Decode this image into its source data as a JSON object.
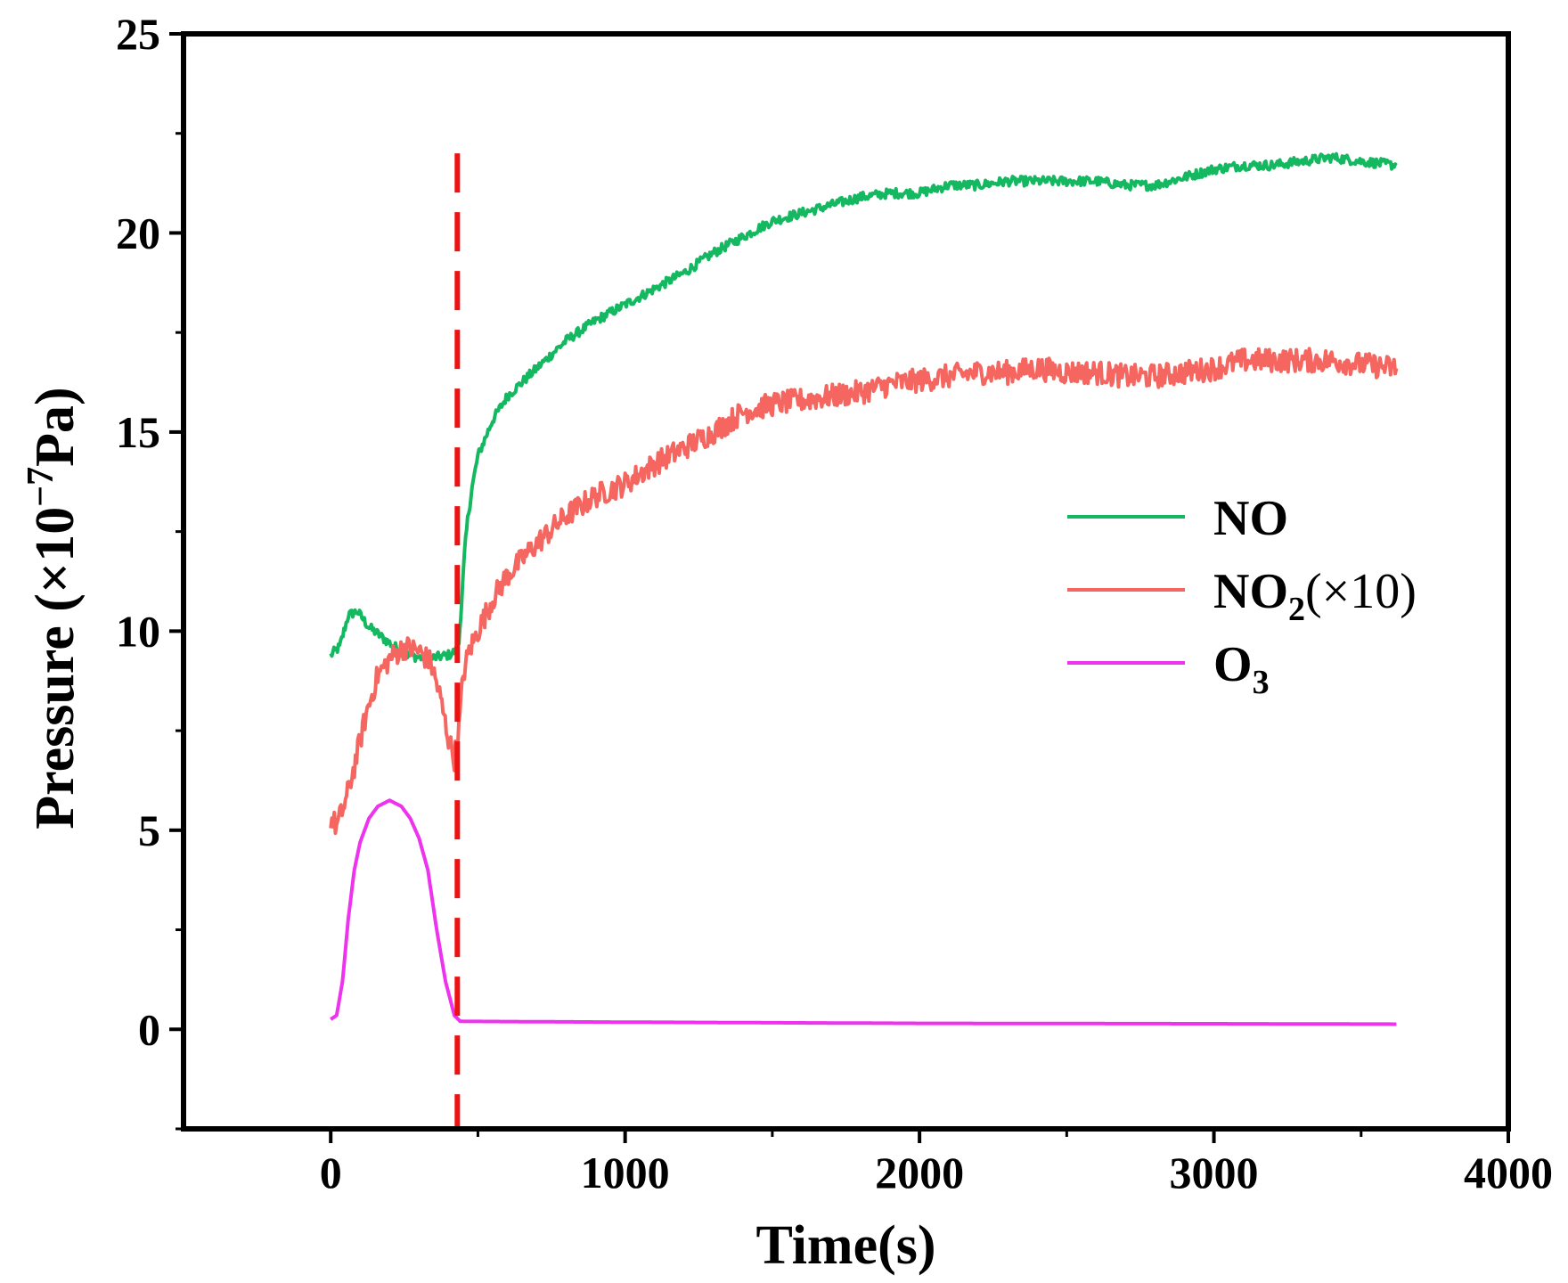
{
  "chart_data": {
    "type": "line",
    "title": "",
    "xlabel": "Time(s)",
    "ylabel": {
      "prefix": "Pressure (×10",
      "exponent": "−7",
      "suffix": "Pa)"
    },
    "xlim": [
      -500,
      4000
    ],
    "ylim": [
      -2.5,
      25
    ],
    "xticks": [
      0,
      1000,
      2000,
      3000,
      4000
    ],
    "yticks": [
      0,
      5,
      10,
      15,
      20,
      25
    ],
    "xtick_labels": [
      "0",
      "1000",
      "2000",
      "3000",
      "4000"
    ],
    "ytick_labels": [
      "0",
      "5",
      "10",
      "15",
      "20",
      "25"
    ],
    "vline": {
      "x": 430,
      "y_range": [
        -2.5,
        22
      ],
      "color": "#ee1111",
      "style": "dashed"
    },
    "legend_position": "right",
    "series": [
      {
        "name": "NO",
        "legend": {
          "main": "NO",
          "sub": "",
          "suffix": ""
        },
        "color": "#14b860",
        "noise": 0.12,
        "points": [
          [
            0,
            9.4
          ],
          [
            30,
            9.6
          ],
          [
            60,
            10.4
          ],
          [
            90,
            10.5
          ],
          [
            130,
            10.1
          ],
          [
            200,
            9.7
          ],
          [
            260,
            9.4
          ],
          [
            330,
            9.3
          ],
          [
            400,
            9.4
          ],
          [
            425,
            9.5
          ],
          [
            435,
            9.7
          ],
          [
            445,
            10.8
          ],
          [
            455,
            12.0
          ],
          [
            465,
            12.8
          ],
          [
            480,
            13.6
          ],
          [
            500,
            14.4
          ],
          [
            550,
            15.3
          ],
          [
            600,
            15.9
          ],
          [
            700,
            16.6
          ],
          [
            800,
            17.3
          ],
          [
            900,
            17.8
          ],
          [
            1000,
            18.2
          ],
          [
            1100,
            18.6
          ],
          [
            1200,
            19.0
          ],
          [
            1300,
            19.5
          ],
          [
            1400,
            19.9
          ],
          [
            1500,
            20.3
          ],
          [
            1600,
            20.5
          ],
          [
            1700,
            20.7
          ],
          [
            1800,
            20.9
          ],
          [
            1900,
            21.0
          ],
          [
            2000,
            21.0
          ],
          [
            2100,
            21.2
          ],
          [
            2200,
            21.2
          ],
          [
            2300,
            21.3
          ],
          [
            2400,
            21.3
          ],
          [
            2500,
            21.3
          ],
          [
            2600,
            21.3
          ],
          [
            2700,
            21.2
          ],
          [
            2800,
            21.2
          ],
          [
            2900,
            21.4
          ],
          [
            3000,
            21.6
          ],
          [
            3100,
            21.7
          ],
          [
            3200,
            21.7
          ],
          [
            3300,
            21.8
          ],
          [
            3400,
            21.9
          ],
          [
            3500,
            21.8
          ],
          [
            3620,
            21.7
          ]
        ]
      },
      {
        "name": "NO2(×10)",
        "legend": {
          "main": "NO",
          "sub": "2",
          "suffix": "(×10)"
        },
        "color": "#f4665f",
        "noise": 0.3,
        "points": [
          [
            0,
            5.3
          ],
          [
            20,
            5.1
          ],
          [
            50,
            5.7
          ],
          [
            80,
            6.6
          ],
          [
            120,
            7.9
          ],
          [
            160,
            8.9
          ],
          [
            200,
            9.3
          ],
          [
            250,
            9.6
          ],
          [
            300,
            9.5
          ],
          [
            340,
            9.2
          ],
          [
            370,
            8.4
          ],
          [
            400,
            7.3
          ],
          [
            420,
            6.8
          ],
          [
            435,
            7.5
          ],
          [
            450,
            8.9
          ],
          [
            470,
            9.5
          ],
          [
            500,
            10.0
          ],
          [
            550,
            10.8
          ],
          [
            600,
            11.4
          ],
          [
            700,
            12.2
          ],
          [
            800,
            12.9
          ],
          [
            900,
            13.4
          ],
          [
            1000,
            13.7
          ],
          [
            1100,
            14.2
          ],
          [
            1200,
            14.6
          ],
          [
            1300,
            15.0
          ],
          [
            1400,
            15.5
          ],
          [
            1500,
            15.7
          ],
          [
            1600,
            15.8
          ],
          [
            1700,
            15.9
          ],
          [
            1800,
            16.0
          ],
          [
            1900,
            16.2
          ],
          [
            2000,
            16.3
          ],
          [
            2100,
            16.4
          ],
          [
            2200,
            16.5
          ],
          [
            2300,
            16.5
          ],
          [
            2400,
            16.6
          ],
          [
            2500,
            16.5
          ],
          [
            2600,
            16.5
          ],
          [
            2700,
            16.4
          ],
          [
            2800,
            16.4
          ],
          [
            2900,
            16.5
          ],
          [
            3000,
            16.6
          ],
          [
            3100,
            16.8
          ],
          [
            3200,
            16.8
          ],
          [
            3300,
            16.8
          ],
          [
            3400,
            16.8
          ],
          [
            3500,
            16.7
          ],
          [
            3620,
            16.6
          ]
        ]
      },
      {
        "name": "O3",
        "legend": {
          "main": "O",
          "sub": "3",
          "suffix": ""
        },
        "color": "#ee33ee",
        "noise": 0.0,
        "points": [
          [
            0,
            0.25
          ],
          [
            20,
            0.35
          ],
          [
            40,
            1.2
          ],
          [
            60,
            2.8
          ],
          [
            80,
            4.0
          ],
          [
            100,
            4.7
          ],
          [
            130,
            5.3
          ],
          [
            160,
            5.6
          ],
          [
            200,
            5.75
          ],
          [
            240,
            5.6
          ],
          [
            270,
            5.3
          ],
          [
            300,
            4.8
          ],
          [
            330,
            4.0
          ],
          [
            360,
            2.5
          ],
          [
            390,
            1.2
          ],
          [
            420,
            0.35
          ],
          [
            440,
            0.2
          ],
          [
            1000,
            0.18
          ],
          [
            2000,
            0.15
          ],
          [
            3000,
            0.14
          ],
          [
            3620,
            0.13
          ]
        ]
      }
    ]
  }
}
